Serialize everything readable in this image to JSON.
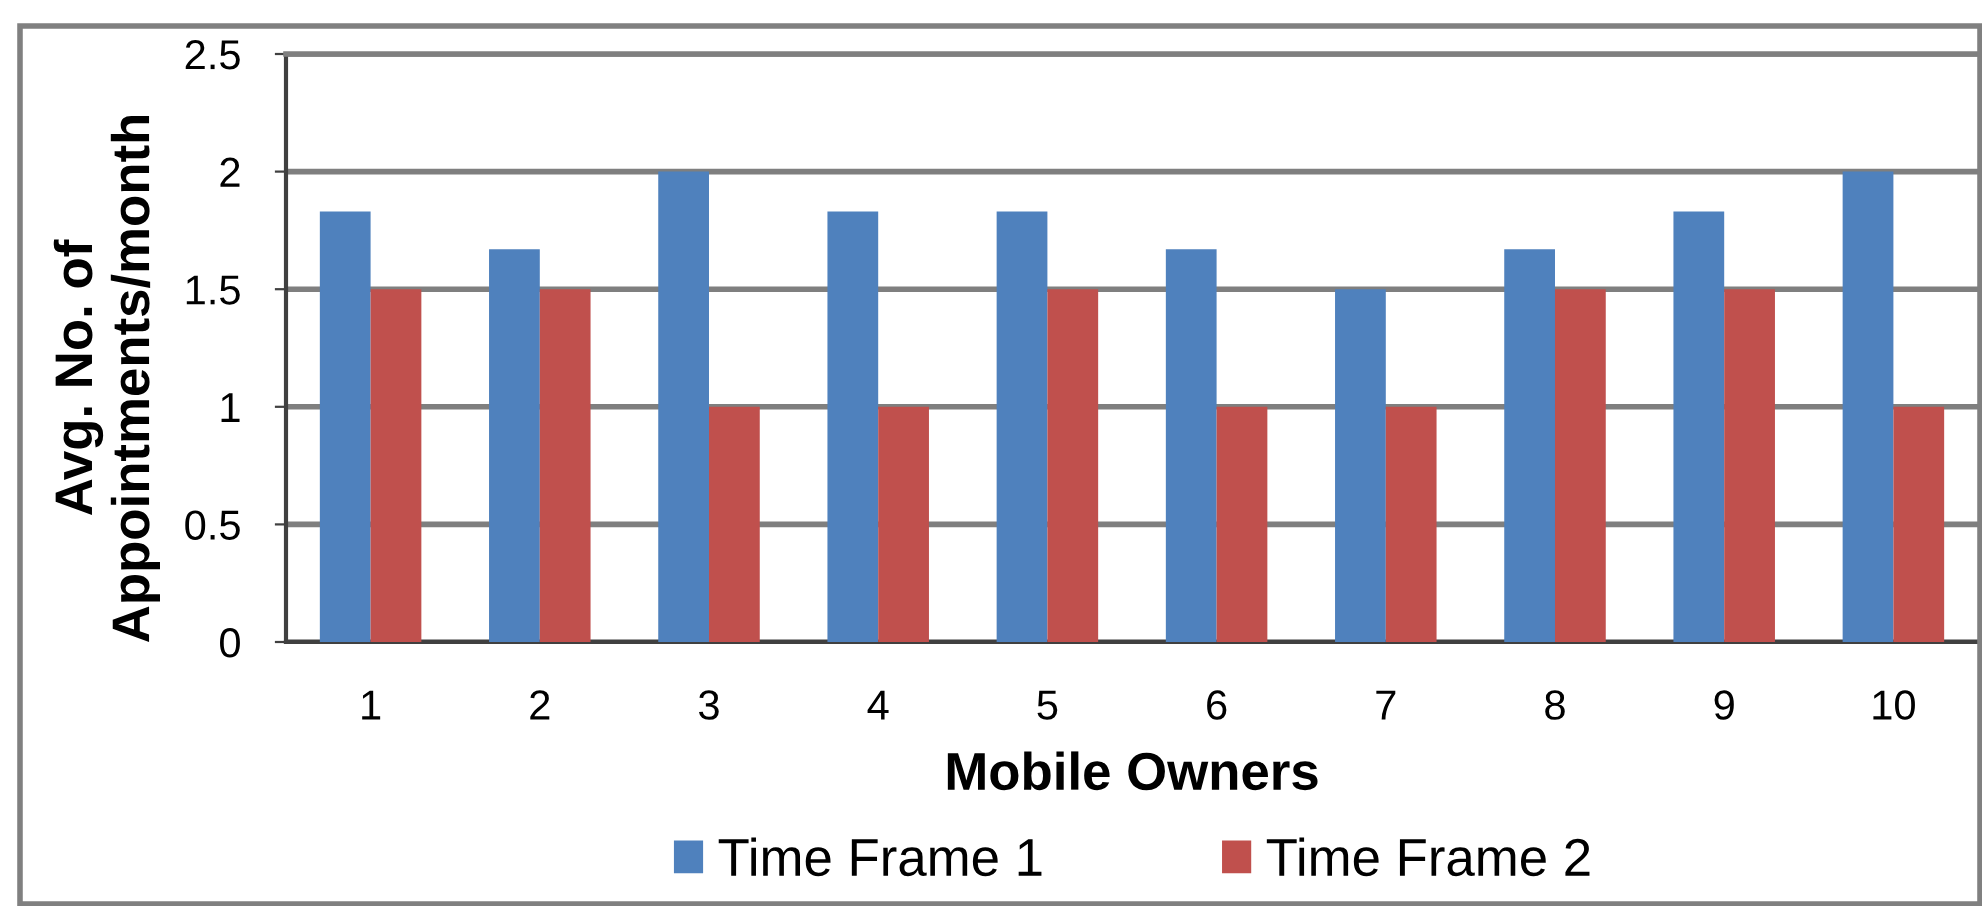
{
  "chart_data": {
    "type": "bar",
    "xlabel": "Mobile Owners",
    "ylabel": "Avg. No. of\nAppointments/month",
    "categories": [
      "1",
      "2",
      "3",
      "4",
      "5",
      "6",
      "7",
      "8",
      "9",
      "10"
    ],
    "series": [
      {
        "name": "Time Frame 1",
        "color": "#4f81bd",
        "values": [
          1.83,
          1.67,
          2,
          1.83,
          1.83,
          1.67,
          1.5,
          1.67,
          1.83,
          2
        ]
      },
      {
        "name": "Time Frame 2",
        "color": "#c0504d",
        "values": [
          1.5,
          1.5,
          1,
          1,
          1.5,
          1,
          1,
          1.5,
          1.5,
          1
        ]
      }
    ],
    "ylim": [
      0,
      2.5
    ],
    "yticks": [
      0,
      0.5,
      1,
      1.5,
      2,
      2.5
    ],
    "grid": "y",
    "legend": "bottom"
  }
}
